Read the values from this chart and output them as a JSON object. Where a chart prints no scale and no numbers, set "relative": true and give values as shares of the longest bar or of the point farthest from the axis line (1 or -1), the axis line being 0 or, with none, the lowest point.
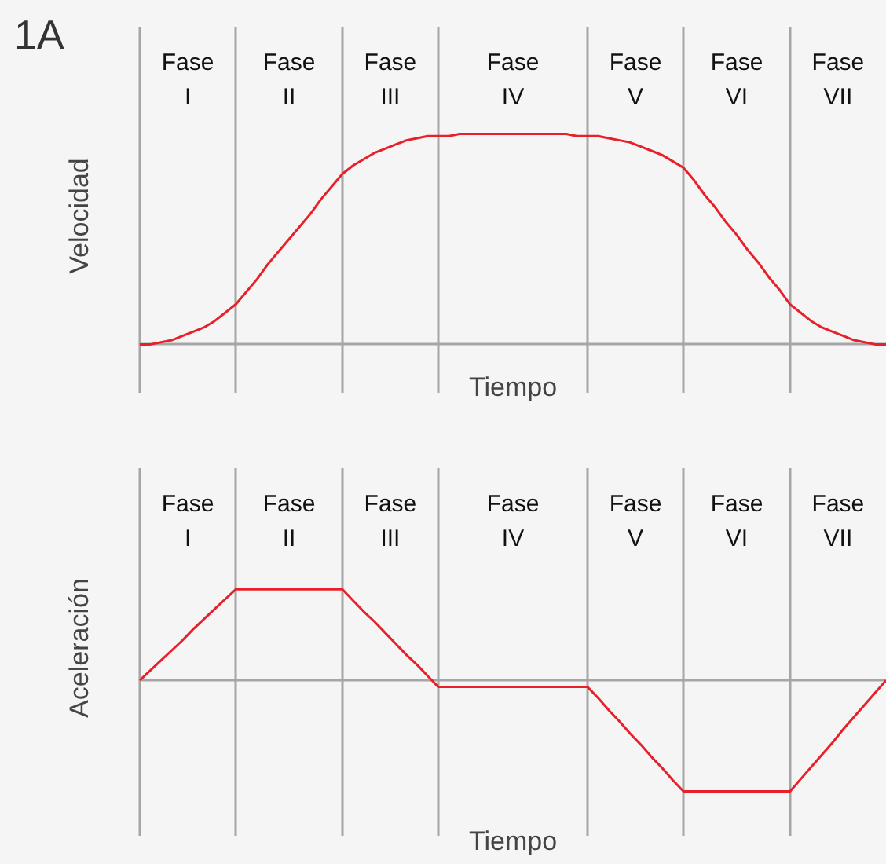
{
  "chart_data": [
    {
      "type": "line",
      "title": "1A",
      "xlabel": "Tiempo",
      "ylabel": "Velocidad",
      "relative": true,
      "tick_labels": false,
      "grid": "x",
      "categories": [
        null,
        null,
        null,
        null,
        null,
        null,
        null,
        null,
        null,
        null,
        null,
        null,
        null,
        null,
        null,
        null,
        null,
        null,
        null,
        null,
        null,
        null,
        null,
        null,
        null,
        null,
        null,
        null,
        null,
        null,
        null,
        null,
        null,
        null,
        null,
        null,
        null,
        null,
        null,
        null,
        null,
        null,
        null,
        null,
        null,
        null,
        null,
        null,
        null,
        null,
        null,
        null,
        null,
        null,
        null,
        null,
        null,
        null,
        null,
        null,
        null,
        null,
        null,
        null,
        null,
        null,
        null,
        null,
        null,
        null,
        null
      ],
      "series": [
        {
          "color": "#e8202a",
          "values": [
            0,
            0,
            0.01,
            0.02,
            0.04,
            0.06,
            0.08,
            0.11,
            0.15,
            0.19,
            0.25,
            0.31,
            0.38,
            0.44,
            0.5,
            0.56,
            0.62,
            0.69,
            0.75,
            0.81,
            0.85,
            0.88,
            0.91,
            0.93,
            0.95,
            0.97,
            0.98,
            0.99,
            0.99,
            0.99,
            1,
            1,
            1,
            1,
            1,
            1,
            1,
            1,
            1,
            1,
            1,
            0.99,
            0.99,
            0.99,
            0.98,
            0.97,
            0.96,
            0.94,
            0.92,
            0.9,
            0.87,
            0.84,
            0.78,
            0.71,
            0.65,
            0.58,
            0.52,
            0.45,
            0.39,
            0.32,
            0.26,
            0.19,
            0.15,
            0.11,
            0.08,
            0.06,
            0.04,
            0.02,
            0.01,
            0,
            0
          ]
        }
      ],
      "annotations": [
        "Fase\nI",
        "Fase\nII",
        "Fase\nIII",
        "Fase\nIV",
        "Fase\nV",
        "Fase\nVI",
        "Fase\nVII"
      ]
    },
    {
      "type": "line",
      "xlabel": "Tiempo",
      "ylabel": "Aceleración",
      "relative": true,
      "tick_labels": false,
      "grid": "x",
      "categories": [
        null,
        null,
        null,
        null,
        null,
        null,
        null,
        null,
        null,
        null,
        null,
        null,
        null,
        null,
        null,
        null,
        null,
        null,
        null,
        null,
        null,
        null,
        null,
        null,
        null,
        null,
        null,
        null,
        null,
        null,
        null,
        null,
        null,
        null,
        null,
        null,
        null,
        null,
        null,
        null,
        null,
        null,
        null,
        null,
        null,
        null,
        null,
        null,
        null,
        null,
        null,
        null,
        null,
        null,
        null,
        null,
        null,
        null,
        null,
        null,
        null,
        null,
        null,
        null,
        null,
        null,
        null,
        null,
        null,
        null,
        null
      ],
      "series": [
        {
          "color": "#e8202a",
          "values": [
            0,
            0.09,
            0.18,
            0.27,
            0.36,
            0.46,
            0.55,
            0.64,
            0.73,
            0.82,
            0.82,
            0.82,
            0.82,
            0.82,
            0.82,
            0.82,
            0.82,
            0.82,
            0.82,
            0.82,
            0.72,
            0.62,
            0.53,
            0.43,
            0.33,
            0.23,
            0.14,
            0.04,
            -0.06,
            -0.06,
            -0.06,
            -0.06,
            -0.06,
            -0.06,
            -0.06,
            -0.06,
            -0.06,
            -0.06,
            -0.06,
            -0.06,
            -0.06,
            -0.06,
            -0.06,
            -0.16,
            -0.27,
            -0.37,
            -0.48,
            -0.58,
            -0.69,
            -0.79,
            -0.9,
            -1,
            -1,
            -1,
            -1,
            -1,
            -1,
            -1,
            -1,
            -1,
            -1,
            -1,
            -0.89,
            -0.78,
            -0.67,
            -0.56,
            -0.44,
            -0.33,
            -0.22,
            -0.11,
            0
          ]
        }
      ],
      "annotations": [
        "Fase\nI",
        "Fase\nII",
        "Fase\nIII",
        "Fase\nIV",
        "Fase\nV",
        "Fase\nVI",
        "Fase\nVII"
      ]
    }
  ]
}
